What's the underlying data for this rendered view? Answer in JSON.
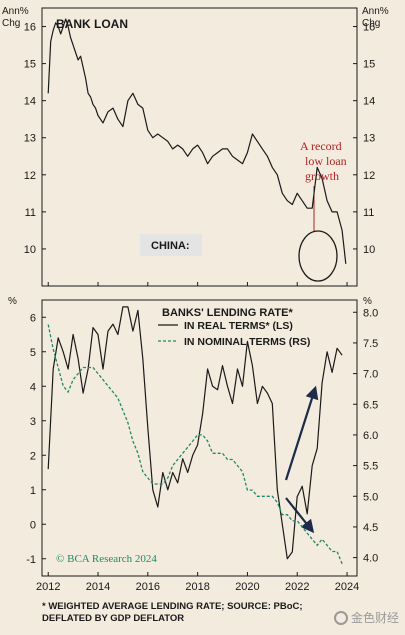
{
  "labels": {
    "ann_chg_left": [
      "Ann%",
      "Chg"
    ],
    "ann_chg_right": [
      "Ann%",
      "Chg"
    ],
    "pct_left": "%",
    "pct_right": "%",
    "china_box": "CHINA:",
    "record_note": [
      "A record",
      "low loan",
      "growth"
    ],
    "credit": "© BCA Research 2024",
    "footnote": [
      "* WEIGHTED AVERAGE LENDING RATE; SOURCE: PBoC;",
      "DEFLATED BY GDP DEFLATOR"
    ],
    "watermark": "金色财经"
  },
  "colors": {
    "background": "#f3ebdd",
    "real_line": "#1a1a1a",
    "nominal_line": "#1f8a6a",
    "note_red": "#b22222",
    "arrow_navy": "#1c2b4a"
  },
  "chart_data": [
    {
      "type": "line",
      "title": "BANK LOAN",
      "ylim": [
        9.0,
        16.5
      ],
      "xlim": [
        2011.75,
        2024.4
      ],
      "yticks": [
        10,
        11,
        12,
        13,
        14,
        15,
        16
      ],
      "ytick_labels": [
        "10",
        "11",
        "12",
        "13",
        "14",
        "15",
        "16"
      ],
      "series": [
        {
          "x": [
            2012.0,
            2012.1,
            2012.2,
            2012.3,
            2012.4,
            2012.5,
            2012.6,
            2012.7,
            2012.8,
            2012.9,
            2013.0,
            2013.1,
            2013.2,
            2013.3,
            2013.4,
            2013.5,
            2013.6,
            2013.7,
            2013.8,
            2013.9,
            2014.0,
            2014.2,
            2014.4,
            2014.6,
            2014.8,
            2015.0,
            2015.2,
            2015.4,
            2015.6,
            2015.8,
            2016.0,
            2016.2,
            2016.4,
            2016.6,
            2016.8,
            2017.0,
            2017.2,
            2017.4,
            2017.6,
            2017.8,
            2018.0,
            2018.2,
            2018.4,
            2018.6,
            2018.8,
            2019.0,
            2019.2,
            2019.4,
            2019.6,
            2019.8,
            2020.0,
            2020.2,
            2020.4,
            2020.6,
            2020.8,
            2021.0,
            2021.2,
            2021.4,
            2021.6,
            2021.8,
            2022.0,
            2022.2,
            2022.4,
            2022.6,
            2022.8,
            2023.0,
            2023.2,
            2023.4,
            2023.6,
            2023.8,
            2023.95
          ],
          "values": [
            14.2,
            15.6,
            15.9,
            16.1,
            16.0,
            15.8,
            16.0,
            16.2,
            16.0,
            15.7,
            15.5,
            15.3,
            15.1,
            15.2,
            14.9,
            14.6,
            14.2,
            14.1,
            13.9,
            13.8,
            13.6,
            13.4,
            13.7,
            13.8,
            13.5,
            13.3,
            14.0,
            14.2,
            13.9,
            13.8,
            13.2,
            13.0,
            13.1,
            13.0,
            12.9,
            12.7,
            12.8,
            12.7,
            12.5,
            12.7,
            12.8,
            12.6,
            12.3,
            12.5,
            12.6,
            12.7,
            12.7,
            12.5,
            12.4,
            12.3,
            12.6,
            13.1,
            12.9,
            12.7,
            12.5,
            12.2,
            12.0,
            11.5,
            11.3,
            11.2,
            11.5,
            11.3,
            11.1,
            11.1,
            12.2,
            11.9,
            11.3,
            11.0,
            11.0,
            10.5,
            9.6
          ]
        }
      ]
    },
    {
      "type": "line",
      "title": "BANKS' LENDING RATE*",
      "xlim": [
        2011.75,
        2024.4
      ],
      "xticks": [
        2012,
        2014,
        2016,
        2018,
        2020,
        2022,
        2024
      ],
      "xtick_labels": [
        "2012",
        "2014",
        "2016",
        "2018",
        "2020",
        "2022",
        "2024"
      ],
      "ylim_left": [
        -1.5,
        6.5
      ],
      "yticks_left": [
        -1,
        0,
        1,
        2,
        3,
        4,
        5,
        6
      ],
      "ytick_labels_left": [
        "-1",
        "0",
        "1",
        "2",
        "3",
        "4",
        "5",
        "6"
      ],
      "ylim_right": [
        3.7,
        8.2
      ],
      "yticks_right": [
        4.0,
        4.5,
        5.0,
        5.5,
        6.0,
        6.5,
        7.0,
        7.5,
        8.0
      ],
      "ytick_labels_right": [
        "4.0",
        "4.5",
        "5.0",
        "5.5",
        "6.0",
        "6.5",
        "7.0",
        "7.5",
        "8.0"
      ],
      "series": [
        {
          "name": "IN REAL TERMS* (LS)",
          "axis": "left",
          "style": "solid",
          "x": [
            2012.0,
            2012.2,
            2012.4,
            2012.6,
            2012.8,
            2013.0,
            2013.2,
            2013.4,
            2013.6,
            2013.8,
            2014.0,
            2014.2,
            2014.4,
            2014.6,
            2014.8,
            2015.0,
            2015.2,
            2015.4,
            2015.6,
            2015.8,
            2016.0,
            2016.2,
            2016.4,
            2016.6,
            2016.8,
            2017.0,
            2017.2,
            2017.4,
            2017.6,
            2017.8,
            2018.0,
            2018.2,
            2018.4,
            2018.6,
            2018.8,
            2019.0,
            2019.2,
            2019.4,
            2019.6,
            2019.8,
            2020.0,
            2020.2,
            2020.4,
            2020.6,
            2020.8,
            2021.0,
            2021.2,
            2021.4,
            2021.6,
            2021.8,
            2022.0,
            2022.2,
            2022.4,
            2022.6,
            2022.8,
            2023.0,
            2023.2,
            2023.4,
            2023.6,
            2023.8
          ],
          "values": [
            1.6,
            4.5,
            5.4,
            5.0,
            4.5,
            5.5,
            4.8,
            3.8,
            4.5,
            5.7,
            5.5,
            4.5,
            5.6,
            5.8,
            5.5,
            6.3,
            6.3,
            5.6,
            6.2,
            4.8,
            2.8,
            1.0,
            0.5,
            1.5,
            1.0,
            1.5,
            1.2,
            1.9,
            1.5,
            2.0,
            2.3,
            3.2,
            4.5,
            4.0,
            3.9,
            4.6,
            4.0,
            3.5,
            4.5,
            4.0,
            5.3,
            4.6,
            3.5,
            4.0,
            3.8,
            3.5,
            1.0,
            0.0,
            -1.0,
            -0.8,
            0.8,
            1.1,
            0.3,
            1.7,
            2.2,
            4.1,
            5.0,
            4.4,
            5.1,
            4.9
          ]
        },
        {
          "name": "IN NOMINAL TERMS (RS)",
          "axis": "right",
          "style": "dashed",
          "x": [
            2012.0,
            2012.2,
            2012.4,
            2012.6,
            2012.8,
            2013.0,
            2013.2,
            2013.4,
            2013.6,
            2013.8,
            2014.0,
            2014.2,
            2014.4,
            2014.6,
            2014.8,
            2015.0,
            2015.2,
            2015.4,
            2015.6,
            2015.8,
            2016.0,
            2016.2,
            2016.4,
            2016.6,
            2016.8,
            2017.0,
            2017.2,
            2017.4,
            2017.6,
            2017.8,
            2018.0,
            2018.2,
            2018.4,
            2018.6,
            2018.8,
            2019.0,
            2019.2,
            2019.4,
            2019.6,
            2019.8,
            2020.0,
            2020.2,
            2020.4,
            2020.6,
            2020.8,
            2021.0,
            2021.2,
            2021.4,
            2021.6,
            2021.8,
            2022.0,
            2022.2,
            2022.4,
            2022.6,
            2022.8,
            2023.0,
            2023.2,
            2023.4,
            2023.6,
            2023.8
          ],
          "values": [
            7.8,
            7.4,
            7.1,
            6.8,
            6.7,
            6.9,
            7.0,
            7.1,
            7.1,
            7.1,
            7.0,
            6.9,
            6.8,
            6.7,
            6.6,
            6.4,
            6.2,
            5.9,
            5.7,
            5.4,
            5.3,
            5.2,
            5.2,
            5.2,
            5.3,
            5.5,
            5.6,
            5.7,
            5.8,
            5.9,
            6.0,
            6.0,
            5.9,
            5.7,
            5.7,
            5.7,
            5.6,
            5.6,
            5.5,
            5.4,
            5.1,
            5.1,
            5.0,
            5.0,
            5.0,
            5.0,
            4.9,
            4.7,
            4.7,
            4.6,
            4.6,
            4.5,
            4.4,
            4.3,
            4.2,
            4.3,
            4.2,
            4.1,
            4.1,
            3.9
          ]
        }
      ]
    }
  ]
}
